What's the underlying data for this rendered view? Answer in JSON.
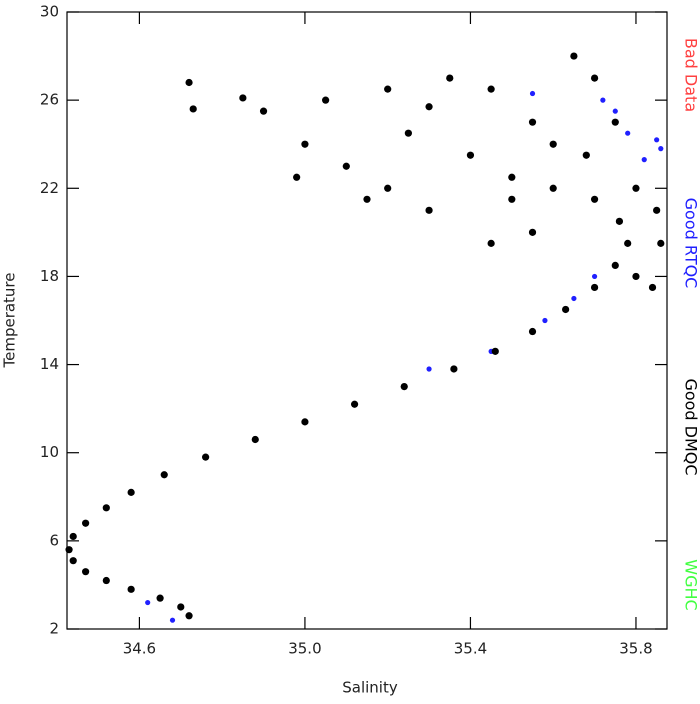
{
  "chart_data": {
    "type": "scatter",
    "x_label": "Salinity",
    "y_label": "Temperature",
    "xlim": [
      34.425,
      35.875
    ],
    "ylim": [
      2,
      30
    ],
    "xticks": [
      34.6,
      {
        "value": 35,
        "label": "35.0"
      },
      35.4,
      35.8
    ],
    "yticks": [
      2,
      6,
      10,
      14,
      18,
      22,
      26,
      30
    ],
    "series": [
      {
        "name": "Bad Data",
        "color": "#ff4040",
        "x": [],
        "values": []
      },
      {
        "name": "Good RTQC",
        "color": "#2020ff",
        "x": [
          34.68,
          34.62,
          35.3,
          35.45,
          35.58,
          35.65,
          35.7,
          35.55,
          35.75,
          35.85,
          35.86,
          35.82,
          35.78,
          35.72
        ],
        "values": [
          2.4,
          3.2,
          13.8,
          14.6,
          16,
          17,
          18,
          26.3,
          25.5,
          24.2,
          23.8,
          23.3,
          24.5,
          26
        ]
      },
      {
        "name": "Good DMQC",
        "color": "#000000",
        "x": [
          34.72,
          34.7,
          34.65,
          34.58,
          34.52,
          34.47,
          34.44,
          34.43,
          34.44,
          34.47,
          34.52,
          34.58,
          34.66,
          34.76,
          34.88,
          35.0,
          35.12,
          35.24,
          35.36,
          35.46,
          35.55,
          35.63,
          35.7,
          35.75,
          35.78,
          35.76,
          35.7,
          35.6,
          35.5,
          35.8,
          35.84,
          35.86,
          35.3,
          35.2,
          35.1,
          35.0,
          34.9,
          34.72,
          34.73,
          34.85,
          35.05,
          35.2,
          35.35,
          35.45,
          35.55,
          35.65,
          35.7,
          35.6,
          35.4,
          35.25,
          35.15,
          35.45,
          35.55,
          35.8,
          35.85,
          34.98,
          35.3,
          35.5,
          35.68,
          35.75
        ],
        "values": [
          2.6,
          3.0,
          3.4,
          3.8,
          4.2,
          4.6,
          5.1,
          5.6,
          6.2,
          6.8,
          7.5,
          8.2,
          9.0,
          9.8,
          10.6,
          11.4,
          12.2,
          13.0,
          13.8,
          14.6,
          15.5,
          16.5,
          17.5,
          18.5,
          19.5,
          20.5,
          21.5,
          22.0,
          21.5,
          18.0,
          17.5,
          19.5,
          21,
          22,
          23,
          24,
          25.5,
          26.8,
          25.6,
          26.1,
          26,
          26.5,
          27,
          26.5,
          25,
          28,
          27,
          24,
          23.5,
          24.5,
          21.5,
          19.5,
          20,
          22,
          21,
          22.5,
          25.7,
          22.5,
          23.5,
          25
        ]
      },
      {
        "name": "WGHC",
        "color": "#40ff40",
        "x": [],
        "values": []
      }
    ]
  }
}
